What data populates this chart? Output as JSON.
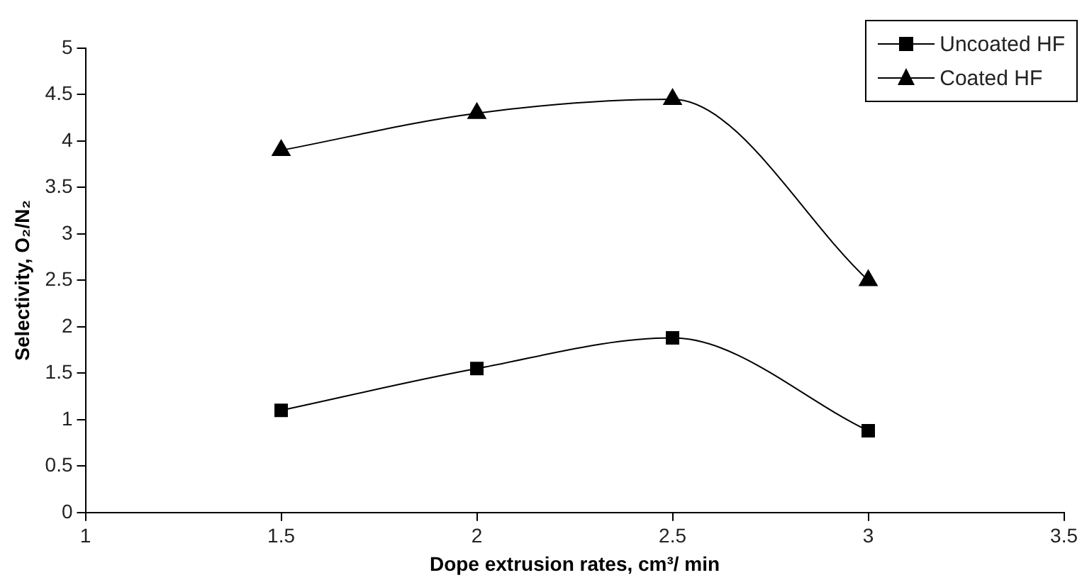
{
  "chart_data": {
    "type": "line",
    "xlabel": "Dope extrusion rates, cm³/ min",
    "ylabel": "Selectivity, O₂/N₂",
    "x": [
      1.5,
      2,
      2.5,
      3
    ],
    "series": [
      {
        "name": "Uncoated HF",
        "color": "#000000",
        "marker": "square",
        "values": [
          1.1,
          1.55,
          1.88,
          0.88
        ]
      },
      {
        "name": "Coated HF",
        "color": "#000000",
        "marker": "triangle",
        "values": [
          3.9,
          4.3,
          4.45,
          2.5
        ]
      }
    ],
    "xlim": [
      1,
      3.5
    ],
    "xticks": [
      1,
      1.5,
      2,
      2.5,
      3,
      3.5
    ],
    "ylim": [
      0,
      5
    ],
    "yticks": [
      0,
      0.5,
      1,
      1.5,
      2,
      2.5,
      3,
      3.5,
      4,
      4.5,
      5
    ],
    "grid": false,
    "legend": "top right",
    "line_style": "solid"
  }
}
